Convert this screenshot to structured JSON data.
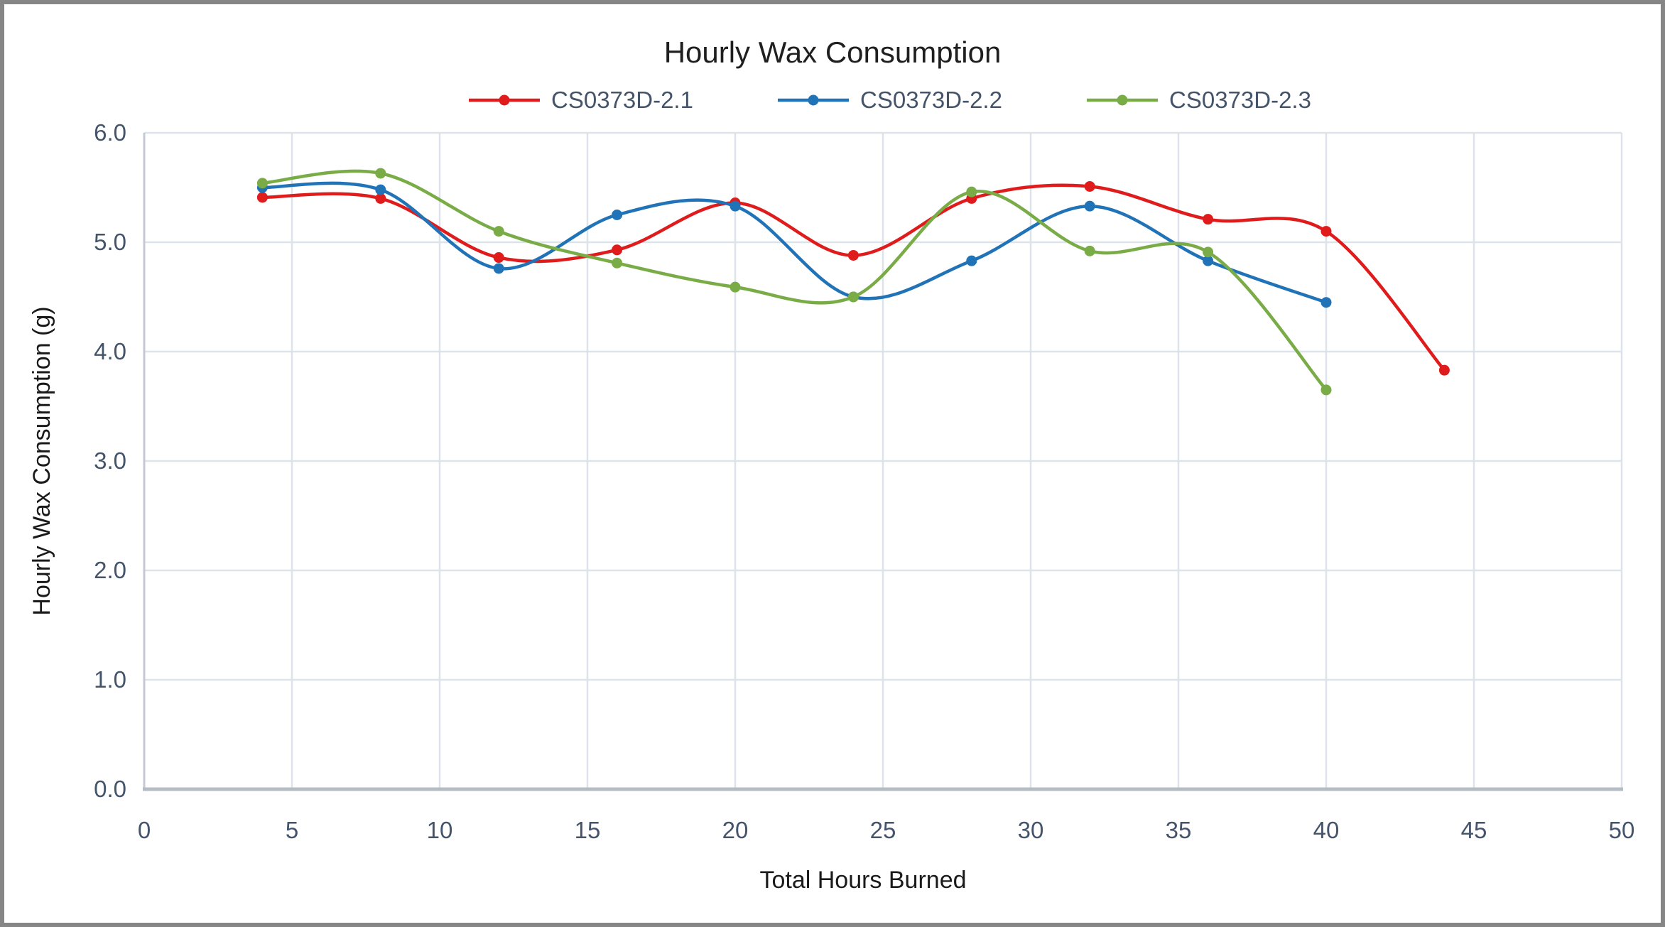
{
  "chart_data": {
    "type": "line",
    "title": "Hourly Wax Consumption",
    "xlabel": "Total Hours Burned",
    "ylabel": "Hourly Wax Consumption (g)",
    "xlim": [
      0,
      50
    ],
    "ylim": [
      0.0,
      6.0
    ],
    "grid": true,
    "smooth": true,
    "markers": true,
    "legend_position": "top-center",
    "x_ticks": [
      0,
      5,
      10,
      15,
      20,
      25,
      30,
      35,
      40,
      45,
      50
    ],
    "x_tick_labels": [
      "0",
      "5",
      "10",
      "15",
      "20",
      "25",
      "30",
      "35",
      "40",
      "45",
      "50"
    ],
    "y_ticks": [
      0,
      1,
      2,
      3,
      4,
      5,
      6
    ],
    "y_tick_labels": [
      "0.0",
      "1.0",
      "2.0",
      "3.0",
      "4.0",
      "5.0",
      "6.0"
    ],
    "series": [
      {
        "name": "CS0373D-2.1",
        "color": "#e01b1c",
        "x": [
          4,
          8,
          12,
          16,
          20,
          24,
          28,
          32,
          36,
          40,
          44
        ],
        "y": [
          5.41,
          5.4,
          4.86,
          4.93,
          5.36,
          4.88,
          5.4,
          5.51,
          5.21,
          5.1,
          3.83
        ]
      },
      {
        "name": "CS0373D-2.2",
        "color": "#2173b8",
        "x": [
          4,
          8,
          12,
          16,
          20,
          24,
          28,
          32,
          36,
          40
        ],
        "y": [
          5.5,
          5.48,
          4.76,
          5.25,
          5.33,
          4.5,
          4.83,
          5.33,
          4.83,
          4.45
        ]
      },
      {
        "name": "CS0373D-2.3",
        "color": "#79ac46",
        "x": [
          4,
          8,
          12,
          16,
          20,
          24,
          28,
          32,
          36,
          40
        ],
        "y": [
          5.54,
          5.63,
          5.1,
          4.81,
          4.59,
          4.5,
          5.46,
          4.92,
          4.91,
          3.65
        ]
      }
    ]
  },
  "colors": {
    "background": "#ffffff",
    "frame_border": "#868686",
    "gridline": "#dce3ea",
    "plot_left_border": "#c3cad2",
    "x_axis_line": "#b4bcc6",
    "tick_label": "#44546a",
    "legend_label": "#44546a",
    "title": "#1f1f1f",
    "axis_title": "#1a1a1a"
  }
}
